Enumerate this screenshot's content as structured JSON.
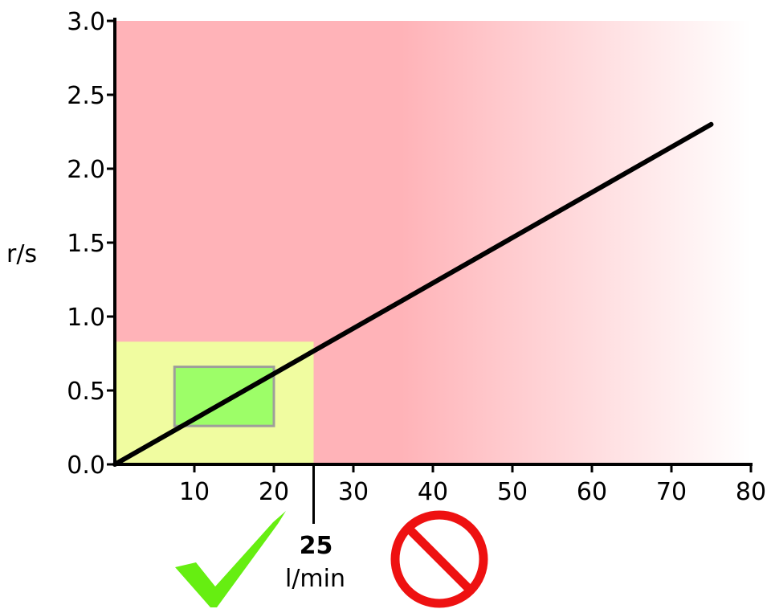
{
  "chart_data": {
    "type": "line",
    "xlabel": "",
    "ylabel": "r/s",
    "xlim": [
      0,
      80
    ],
    "ylim": [
      0,
      3.0
    ],
    "x_ticks": [
      10,
      20,
      30,
      40,
      50,
      60,
      70,
      80
    ],
    "x_tick_labels": [
      "10",
      "20",
      "30",
      "40",
      "50",
      "60",
      "70",
      "80"
    ],
    "y_ticks": [
      0,
      0.5,
      1.0,
      1.5,
      2.0,
      2.5,
      3.0
    ],
    "y_tick_labels": [
      "0.0",
      "0.5",
      "1.0",
      "1.5",
      "2.0",
      "2.5",
      "3.0"
    ],
    "grid": false,
    "series": [
      {
        "x": [
          0,
          75
        ],
        "y": [
          0,
          2.3
        ],
        "color": "#000000"
      }
    ],
    "regions": [
      {
        "kind": "unsafe",
        "x": [
          0,
          80
        ],
        "y": [
          0,
          3.0
        ],
        "color": "#ffb3b8",
        "fade_to_right": true
      },
      {
        "kind": "acceptable",
        "x": [
          0,
          25
        ],
        "y": [
          0,
          0.83
        ],
        "color": "#f0fca0"
      },
      {
        "kind": "optimal",
        "x": [
          7.5,
          20
        ],
        "y": [
          0.26,
          0.66
        ],
        "color": "#99ff66"
      }
    ],
    "marker": {
      "x": 25,
      "value_label": "25",
      "unit_label": "l/min"
    },
    "symbols": {
      "ok": "check-icon",
      "no": "prohibited-icon"
    },
    "colors": {
      "check": "#66ee11",
      "prohibited": "#ee1111",
      "axis": "#000000"
    }
  }
}
